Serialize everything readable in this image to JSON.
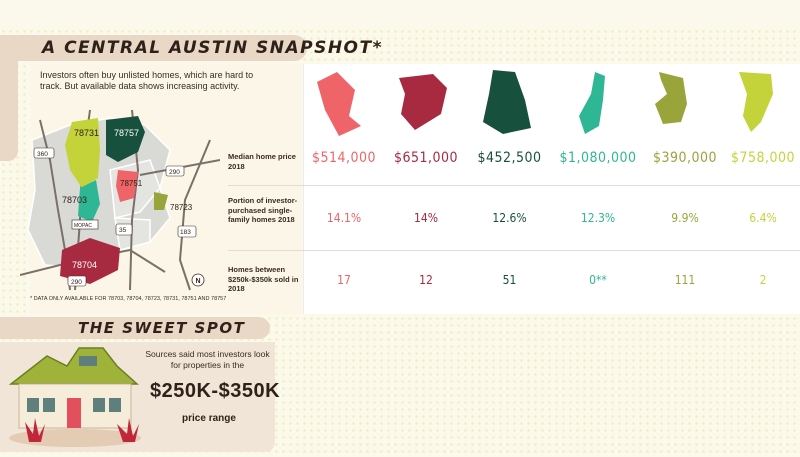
{
  "title": "A CENTRAL AUSTIN SNAPSHOT*",
  "intro": "Investors often buy unlisted homes, which are hard to track. But available data shows increasing activity.",
  "footnote": "* DATA ONLY AVAILABLE FOR 78703, 78704, 78723, 78731, 78751 AND 78757",
  "map": {
    "zip_labels": [
      "78731",
      "78757",
      "78703",
      "78751",
      "78723",
      "78704"
    ],
    "road_labels": [
      "360",
      "290",
      "MOPAC",
      "35",
      "183",
      "290"
    ],
    "compass": "N"
  },
  "row_labels": [
    "Median home price 2018",
    "Portion of investor-purchased single-family homes 2018",
    "Homes between $250k-$350k sold in 2018"
  ],
  "zip_columns": [
    {
      "color": "#ee6468",
      "price": "$514,000",
      "portion": "14.1%",
      "homes": "17"
    },
    {
      "color": "#a82a40",
      "price": "$651,000",
      "portion": "14%",
      "homes": "12"
    },
    {
      "color": "#17513d",
      "price": "$452,500",
      "portion": "12.6%",
      "homes": "51"
    },
    {
      "color": "#2fb694",
      "price": "$1,080,000",
      "portion": "12.3%",
      "homes": "0**"
    },
    {
      "color": "#99a43a",
      "price": "$390,000",
      "portion": "9.9%",
      "homes": "111"
    },
    {
      "color": "#c5d33a",
      "price": "$758,000",
      "portion": "6.4%",
      "homes": "2"
    }
  ],
  "sweet_spot": {
    "title": "THE SWEET SPOT",
    "text": "Sources said most investors look for properties in the",
    "range": "$250K-$350K",
    "range_suffix": "price range"
  }
}
